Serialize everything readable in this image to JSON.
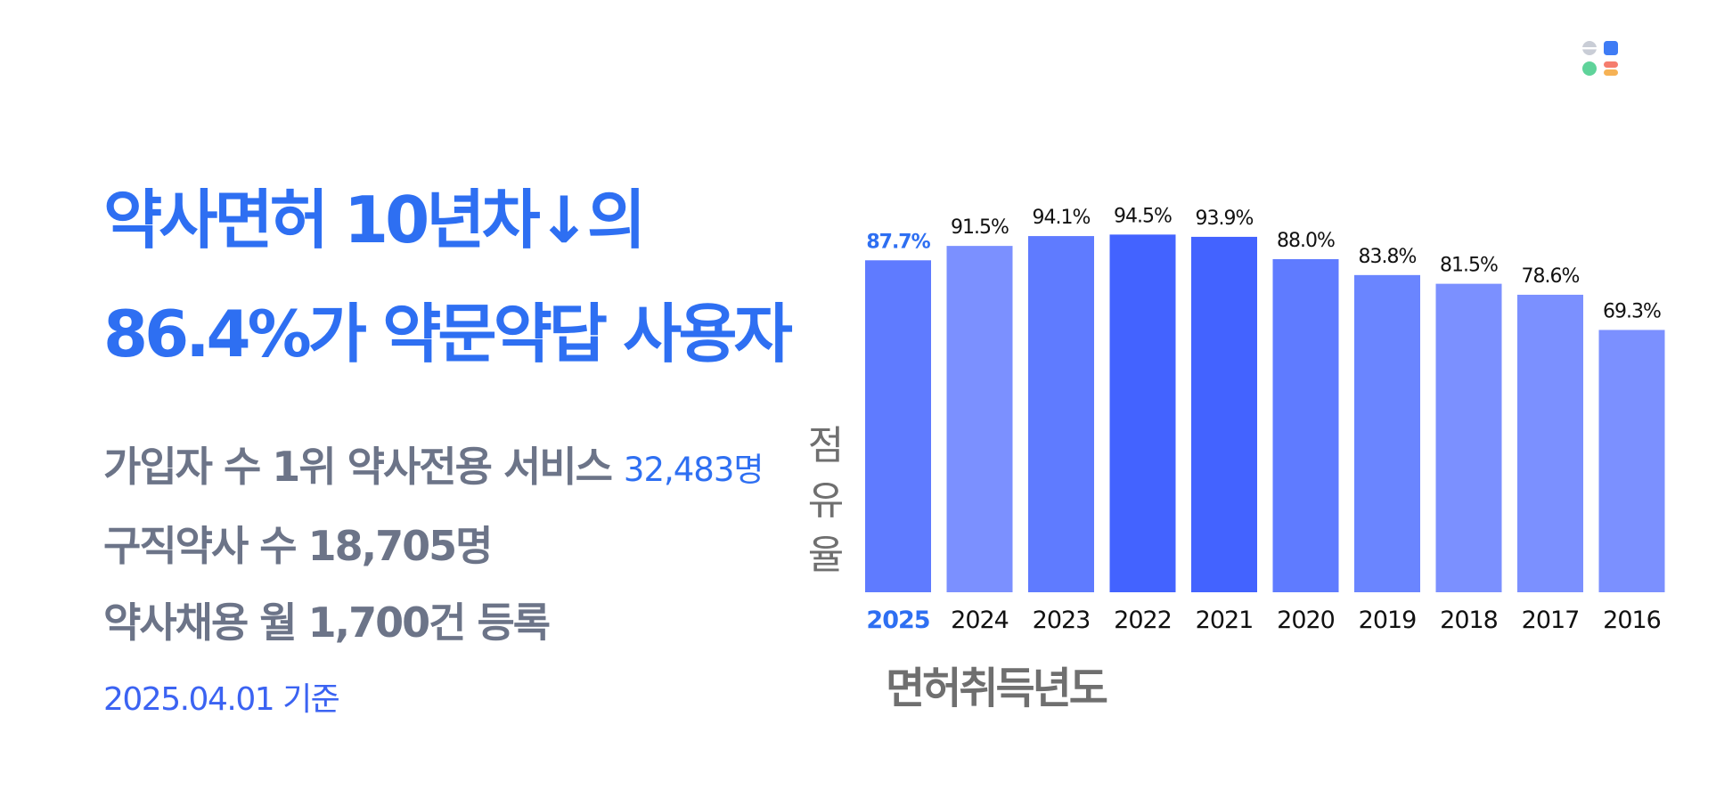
{
  "headline": {
    "line1": "약사면허 10년차↓의",
    "line2": "86.4%가 약문약답 사용자"
  },
  "stats": {
    "line1_text": "가입자 수 1위 약사전용 서비스 ",
    "line1_highlight": "32,483명",
    "line2": "구직약사 수 18,705명",
    "line3": "약사채용 월 1,700건 등록"
  },
  "footnote": "2025.04.01 기준",
  "colors": {
    "accent_blue": "#2e6ff2",
    "gray_text": "#6c7488",
    "bar_mid": "#5f7bff",
    "bar_light": "#7b90ff",
    "bar_dark": "#4363ff"
  },
  "chart_data": {
    "type": "bar",
    "categories": [
      "2025",
      "2024",
      "2023",
      "2022",
      "2021",
      "2020",
      "2019",
      "2018",
      "2017",
      "2016"
    ],
    "values": [
      87.7,
      91.5,
      94.1,
      94.5,
      93.9,
      88.0,
      83.8,
      81.5,
      78.6,
      69.3
    ],
    "value_labels": [
      "87.7%",
      "91.5%",
      "94.1%",
      "94.5%",
      "93.9%",
      "88.0%",
      "83.8%",
      "81.5%",
      "78.6%",
      "69.3%"
    ],
    "bar_colors": [
      "#5f7bff",
      "#7b90ff",
      "#5f7bff",
      "#4363ff",
      "#4363ff",
      "#5f7bff",
      "#6a85ff",
      "#7b90ff",
      "#7b90ff",
      "#7b90ff"
    ],
    "highlight_index": 0,
    "highlight_color": "#2e6ff2",
    "ylabel": "점유율",
    "ylabel_chars": [
      "점",
      "유",
      "율"
    ],
    "xlabel": "면허취득년도",
    "ylim": [
      0,
      100
    ],
    "grid": false
  }
}
